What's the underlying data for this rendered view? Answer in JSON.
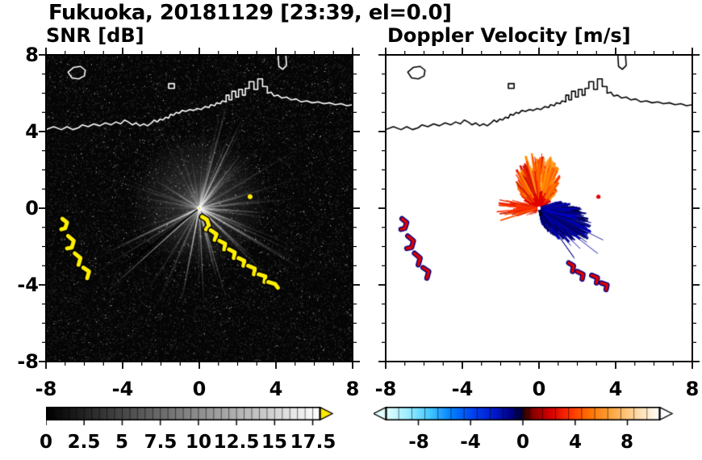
{
  "header": {
    "title": "Fukuoka, 20181129 [23:39, el=0.0]"
  },
  "panels": {
    "snr": {
      "title": "SNR [dB]",
      "xtick_labels": [
        "-8",
        "-4",
        "0",
        "4",
        "8"
      ],
      "ytick_labels": [
        "8",
        "4",
        "0",
        "-4",
        "-8"
      ],
      "colorbar_labels": [
        "0",
        "2.5",
        "5",
        "7.5",
        "10",
        "12.5",
        "15",
        "17.5"
      ]
    },
    "doppler": {
      "title": "Doppler Velocity [m/s]",
      "xtick_labels": [
        "-8",
        "-4",
        "0",
        "4",
        "8"
      ],
      "colorbar_labels": [
        "-8",
        "-4",
        "0",
        "4",
        "8"
      ]
    }
  },
  "chart_data": [
    {
      "type": "heatmap",
      "title": "SNR [dB]",
      "xlim": [
        -8,
        8
      ],
      "ylim": [
        -8,
        8
      ],
      "xticks": [
        -8,
        -4,
        0,
        4,
        8
      ],
      "yticks": [
        -8,
        -4,
        0,
        4,
        8
      ],
      "colorbar": {
        "range": [
          0,
          18
        ],
        "ticks": [
          0,
          2.5,
          5,
          7.5,
          10,
          12.5,
          15,
          17.5
        ],
        "palette": "grayscale black to white",
        "overflow_color": "#ffe800"
      },
      "features": [
        "dark speckle-noise background",
        "bright radial ground-clutter streaks from radar site at origin",
        "radar site bright dot at (0,0)",
        "high-SNR yellow echo arcs near (-7,-0.6) to (-5.8,-3.7)",
        "high-SNR yellow echo chain from (0.2,-0.5) to (4.1,-4.1)",
        "small yellow echo dot near (2.65,0.6)",
        "coastline drawn in white along northern shore"
      ]
    },
    {
      "type": "heatmap",
      "title": "Doppler Velocity [m/s]",
      "xlim": [
        -8,
        8
      ],
      "ylim": [
        -8,
        8
      ],
      "xticks": [
        -8,
        -4,
        0,
        4,
        8
      ],
      "yticks": [
        -8,
        -4,
        0,
        4,
        8
      ],
      "colorbar": {
        "range": [
          -10.5,
          10.5
        ],
        "ticks": [
          -8,
          -4,
          0,
          4,
          8
        ],
        "palette": "diverging cyan-blue-navy / dark red-red-orange-white"
      },
      "features": [
        "fan of warm-colored (positive, +2 to +6 m/s) velocities north of radar",
        "navy (negative, -6 to -9 m/s) velocity lobe east-southeast of radar",
        "red streaks (+4 to +6 m/s) west of radar",
        "small mixed red/navy echo arcs southwest near (-7,-0.6) to (-5.8,-3.7)",
        "small mixed red/navy echo arcs south-southeast near (1.5,-2.9) to (3.5,-4.3)",
        "coastline drawn in black along northern shore"
      ]
    }
  ],
  "render": {
    "coast_main": [
      [
        -8,
        4.1
      ],
      [
        -7.6,
        4.25
      ],
      [
        -7.2,
        4.1
      ],
      [
        -6.9,
        4.25
      ],
      [
        -6.6,
        4.1
      ],
      [
        -6.3,
        4.2
      ],
      [
        -6.1,
        4.35
      ],
      [
        -5.8,
        4.25
      ],
      [
        -5.5,
        4.4
      ],
      [
        -5.2,
        4.3
      ],
      [
        -4.9,
        4.45
      ],
      [
        -4.6,
        4.35
      ],
      [
        -4.35,
        4.5
      ],
      [
        -4.1,
        4.4
      ],
      [
        -3.9,
        4.6
      ],
      [
        -3.7,
        4.5
      ],
      [
        -3.5,
        4.35
      ],
      [
        -3.3,
        4.45
      ],
      [
        -3.1,
        4.3
      ],
      [
        -2.9,
        4.4
      ],
      [
        -2.7,
        4.3
      ],
      [
        -2.5,
        4.45
      ],
      [
        -2.35,
        4.6
      ],
      [
        -2.2,
        4.5
      ],
      [
        -2.05,
        4.65
      ],
      [
        -1.9,
        4.6
      ],
      [
        -1.75,
        4.75
      ],
      [
        -1.6,
        4.7
      ],
      [
        -1.5,
        4.9
      ],
      [
        -1.35,
        4.85
      ],
      [
        -1.2,
        5.0
      ],
      [
        -1.05,
        4.95
      ],
      [
        -0.9,
        5.1
      ],
      [
        -0.7,
        5.05
      ],
      [
        -0.5,
        5.15
      ],
      [
        -0.3,
        5.1
      ],
      [
        -0.1,
        5.2
      ],
      [
        0.1,
        5.15
      ],
      [
        0.3,
        5.3
      ],
      [
        0.5,
        5.25
      ],
      [
        0.6,
        5.4
      ],
      [
        0.8,
        5.35
      ],
      [
        0.9,
        5.5
      ],
      [
        1.1,
        5.45
      ],
      [
        1.2,
        5.6
      ],
      [
        1.4,
        5.55
      ],
      [
        1.4,
        5.9
      ],
      [
        1.55,
        5.9
      ],
      [
        1.55,
        5.65
      ],
      [
        1.7,
        5.65
      ],
      [
        1.7,
        6.1
      ],
      [
        1.9,
        6.1
      ],
      [
        1.9,
        5.8
      ],
      [
        2.05,
        5.8
      ],
      [
        2.05,
        6.2
      ],
      [
        2.25,
        6.2
      ],
      [
        2.25,
        5.9
      ],
      [
        2.4,
        5.9
      ],
      [
        2.4,
        6.25
      ],
      [
        2.6,
        6.25
      ],
      [
        2.6,
        6.6
      ],
      [
        2.85,
        6.6
      ],
      [
        2.85,
        6.2
      ],
      [
        3.05,
        6.2
      ],
      [
        3.05,
        6.75
      ],
      [
        3.3,
        6.75
      ],
      [
        3.3,
        6.35
      ],
      [
        3.55,
        6.35
      ],
      [
        3.55,
        6.0
      ],
      [
        3.75,
        6.05
      ],
      [
        3.9,
        5.85
      ],
      [
        4.1,
        5.9
      ],
      [
        4.3,
        5.75
      ],
      [
        4.55,
        5.8
      ],
      [
        4.8,
        5.65
      ],
      [
        5.05,
        5.7
      ],
      [
        5.3,
        5.55
      ],
      [
        5.6,
        5.6
      ],
      [
        5.9,
        5.5
      ],
      [
        6.2,
        5.55
      ],
      [
        6.5,
        5.45
      ],
      [
        6.8,
        5.5
      ],
      [
        7.1,
        5.4
      ],
      [
        7.4,
        5.45
      ],
      [
        7.7,
        5.35
      ],
      [
        8,
        5.4
      ]
    ],
    "coast_island": [
      [
        -6.85,
        7.1
      ],
      [
        -6.55,
        7.35
      ],
      [
        -6.2,
        7.4
      ],
      [
        -5.95,
        7.2
      ],
      [
        -6.0,
        6.9
      ],
      [
        -6.3,
        6.75
      ],
      [
        -6.65,
        6.8
      ]
    ],
    "coast_islet": [
      [
        -1.6,
        6.25
      ],
      [
        -1.3,
        6.25
      ],
      [
        -1.3,
        6.5
      ],
      [
        -1.6,
        6.5
      ]
    ],
    "coast_spit": [
      [
        4.1,
        8.2
      ],
      [
        4.15,
        7.4
      ],
      [
        4.35,
        7.25
      ],
      [
        4.55,
        7.45
      ],
      [
        4.5,
        8.2
      ]
    ],
    "sw_arcs": [
      [
        [
          -7.15,
          -0.55
        ],
        [
          -6.9,
          -0.75
        ],
        [
          -7.0,
          -1.05
        ],
        [
          -7.2,
          -1.1
        ]
      ],
      [
        [
          -6.85,
          -1.45
        ],
        [
          -6.55,
          -1.7
        ],
        [
          -6.65,
          -2.05
        ],
        [
          -6.9,
          -2.1
        ]
      ],
      [
        [
          -6.5,
          -2.35
        ],
        [
          -6.2,
          -2.6
        ],
        [
          -6.3,
          -2.95
        ]
      ],
      [
        [
          -6.05,
          -3.1
        ],
        [
          -5.75,
          -3.3
        ],
        [
          -5.85,
          -3.65
        ]
      ]
    ],
    "chain_arcs": [
      [
        [
          0.15,
          -0.45
        ],
        [
          0.4,
          -0.6
        ],
        [
          0.5,
          -0.9
        ],
        [
          0.35,
          -1.1
        ]
      ],
      [
        [
          0.6,
          -1.15
        ],
        [
          0.9,
          -1.35
        ],
        [
          0.8,
          -1.65
        ]
      ],
      [
        [
          1.05,
          -1.7
        ],
        [
          1.35,
          -1.85
        ],
        [
          1.3,
          -2.15
        ]
      ],
      [
        [
          1.55,
          -2.15
        ],
        [
          1.85,
          -2.3
        ],
        [
          1.8,
          -2.6
        ]
      ],
      [
        [
          2.05,
          -2.6
        ],
        [
          2.35,
          -2.75
        ],
        [
          2.3,
          -3.0
        ]
      ],
      [
        [
          2.55,
          -3.0
        ],
        [
          2.9,
          -3.15
        ],
        [
          2.85,
          -3.45
        ]
      ],
      [
        [
          3.1,
          -3.45
        ],
        [
          3.45,
          -3.55
        ],
        [
          3.4,
          -3.85
        ]
      ],
      [
        [
          3.6,
          -3.85
        ],
        [
          3.95,
          -3.95
        ],
        [
          4.1,
          -4.15
        ]
      ]
    ],
    "dv_chain_arcs": [
      [
        [
          1.55,
          -2.85
        ],
        [
          1.8,
          -3.0
        ],
        [
          1.75,
          -3.3
        ]
      ],
      [
        [
          2.0,
          -3.3
        ],
        [
          2.3,
          -3.45
        ],
        [
          2.25,
          -3.7
        ]
      ],
      [
        [
          2.75,
          -3.5
        ],
        [
          3.05,
          -3.62
        ],
        [
          3.0,
          -3.9
        ]
      ],
      [
        [
          3.25,
          -3.9
        ],
        [
          3.55,
          -4.0
        ],
        [
          3.5,
          -4.25
        ]
      ]
    ],
    "snr_dot": [
      2.65,
      0.6
    ],
    "dv_dot": [
      3.1,
      0.6
    ],
    "dv_blob": [
      [
        18,
        1.0
      ],
      [
        8,
        1.5
      ],
      [
        -2,
        2.1
      ],
      [
        -12,
        2.5
      ],
      [
        -22,
        2.8
      ],
      [
        -32,
        2.75
      ],
      [
        -42,
        2.45
      ],
      [
        -52,
        2.0
      ],
      [
        -62,
        1.5
      ],
      [
        -72,
        1.0
      ],
      [
        -80,
        0.7
      ]
    ],
    "colors": {
      "snr_echo": "#ffee00",
      "coast_snr": "#ffffff",
      "coast_dv": "#000000",
      "dv_red": "#e00000",
      "dv_navy": "#000080",
      "warm_palette": [
        "#ff7b00",
        "#ff8f00",
        "#ff6400",
        "#ffa020",
        "#ff4d00"
      ],
      "red_palette": [
        "#e82000",
        "#ff3000",
        "#c81400",
        "#ff5500"
      ],
      "navy_palette": [
        "#000080",
        "#000066",
        "#0000a0",
        "#000052",
        "#101090",
        "#0000c0"
      ]
    },
    "snr_cbar_stops": [
      [
        0,
        "#000000"
      ],
      [
        1,
        "#ffffff"
      ]
    ],
    "dv_cbar_stops": [
      [
        0,
        "#e6ffff"
      ],
      [
        0.08,
        "#9ceeff"
      ],
      [
        0.16,
        "#45c8ff"
      ],
      [
        0.24,
        "#0080ff"
      ],
      [
        0.32,
        "#0040f0"
      ],
      [
        0.4,
        "#0018c8"
      ],
      [
        0.46,
        "#000080"
      ],
      [
        0.495,
        "#000038"
      ],
      [
        0.505,
        "#300000"
      ],
      [
        0.54,
        "#8c0000"
      ],
      [
        0.6,
        "#d40000"
      ],
      [
        0.67,
        "#ff3000"
      ],
      [
        0.74,
        "#ff7000"
      ],
      [
        0.82,
        "#ffa53c"
      ],
      [
        0.9,
        "#ffd294"
      ],
      [
        0.97,
        "#fff3e0"
      ],
      [
        1,
        "#ffffff"
      ]
    ]
  }
}
